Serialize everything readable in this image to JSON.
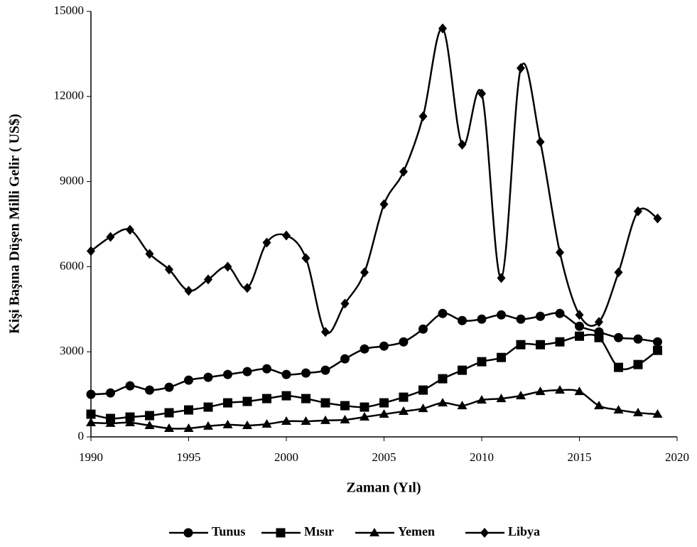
{
  "chart_data": {
    "type": "line",
    "ylabel": "Kişi Başına Düşen Milli Gelir ( US$)",
    "xlabel": "Zaman (Yıl)",
    "x": [
      1990,
      1991,
      1992,
      1993,
      1994,
      1995,
      1996,
      1997,
      1998,
      1999,
      2000,
      2001,
      2002,
      2003,
      2004,
      2005,
      2006,
      2007,
      2008,
      2009,
      2010,
      2011,
      2012,
      2013,
      2014,
      2015,
      2016,
      2017,
      2018,
      2019
    ],
    "series": [
      {
        "name": "Tunus",
        "color": "#000000",
        "marker": "circle",
        "values": [
          1500,
          1550,
          1800,
          1650,
          1750,
          2000,
          2100,
          2200,
          2300,
          2400,
          2200,
          2250,
          2350,
          2750,
          3100,
          3200,
          3350,
          3800,
          4350,
          4100,
          4150,
          4300,
          4150,
          4250,
          4350,
          3900,
          3700,
          3500,
          3450,
          3350
        ]
      },
      {
        "name": "Mısır",
        "color": "#000000",
        "marker": "square",
        "values": [
          800,
          650,
          700,
          750,
          850,
          950,
          1050,
          1200,
          1250,
          1350,
          1450,
          1350,
          1200,
          1100,
          1050,
          1200,
          1400,
          1650,
          2050,
          2350,
          2650,
          2800,
          3250,
          3250,
          3350,
          3550,
          3500,
          2450,
          2550,
          3050
        ]
      },
      {
        "name": "Yemen",
        "color": "#000000",
        "marker": "triangle",
        "values": [
          500,
          480,
          500,
          400,
          300,
          300,
          380,
          430,
          400,
          450,
          550,
          550,
          580,
          600,
          700,
          800,
          900,
          1000,
          1200,
          1100,
          1300,
          1350,
          1450,
          1600,
          1650,
          1600,
          1100,
          950,
          850,
          800
        ]
      },
      {
        "name": "Libya",
        "color": "#000000",
        "marker": "diamond",
        "values": [
          6550,
          7050,
          7300,
          6450,
          5900,
          5150,
          5550,
          6000,
          5250,
          6850,
          7100,
          6300,
          3700,
          4700,
          5800,
          8200,
          9350,
          11300,
          14400,
          10300,
          12100,
          5600,
          13000,
          10400,
          6500,
          4300,
          4050,
          5800,
          7950,
          7700
        ]
      }
    ],
    "xlim": [
      1990,
      2020
    ],
    "xticks": [
      1990,
      1995,
      2000,
      2005,
      2010,
      2015,
      2020
    ],
    "ylim": [
      0,
      15000
    ],
    "yticks": [
      0,
      3000,
      6000,
      9000,
      12000,
      15000
    ],
    "smooth": true,
    "legend": "bottom"
  }
}
